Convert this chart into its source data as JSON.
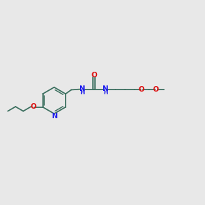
{
  "bg_color": "#e8e8e8",
  "bond_color": "#3d7060",
  "N_color": "#1a1aee",
  "O_color": "#dd1111",
  "bond_lw": 1.3,
  "inner_lw": 1.1,
  "font_size_atom": 7.5,
  "font_size_h": 5.5,
  "figsize": [
    3.0,
    3.0
  ],
  "dpi": 100,
  "xlim": [
    0.0,
    1.0
  ],
  "ylim": [
    0.0,
    1.0
  ]
}
